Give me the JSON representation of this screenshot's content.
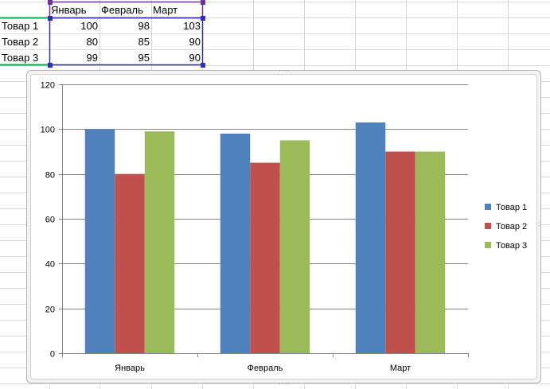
{
  "sheet": {
    "headers": [
      "Январь",
      "Февраль",
      "Март"
    ],
    "rows": [
      {
        "label": "Товар 1",
        "values": [
          "100",
          "98",
          "103"
        ]
      },
      {
        "label": "Товар 2",
        "values": [
          "80",
          "85",
          "90"
        ]
      },
      {
        "label": "Товар 3",
        "values": [
          "99",
          "95",
          "90"
        ]
      }
    ]
  },
  "chart_data": {
    "type": "bar",
    "categories": [
      "Январь",
      "Февраль",
      "Март"
    ],
    "series": [
      {
        "name": "Товар 1",
        "values": [
          100,
          98,
          103
        ],
        "color": "#4f81bd"
      },
      {
        "name": "Товар 2",
        "values": [
          80,
          85,
          90
        ],
        "color": "#c0504d"
      },
      {
        "name": "Товар 3",
        "values": [
          99,
          95,
          90
        ],
        "color": "#9bbb59"
      }
    ],
    "yticks": [
      0,
      20,
      40,
      60,
      80,
      100,
      120
    ],
    "ylim": [
      0,
      120
    ],
    "grid": true,
    "legend": "right"
  },
  "colors": {
    "selection_range": "#7030a0",
    "selection_handle": "#2f2fb5",
    "header_range": "#00b050",
    "gridline": "#d9d9d9"
  }
}
